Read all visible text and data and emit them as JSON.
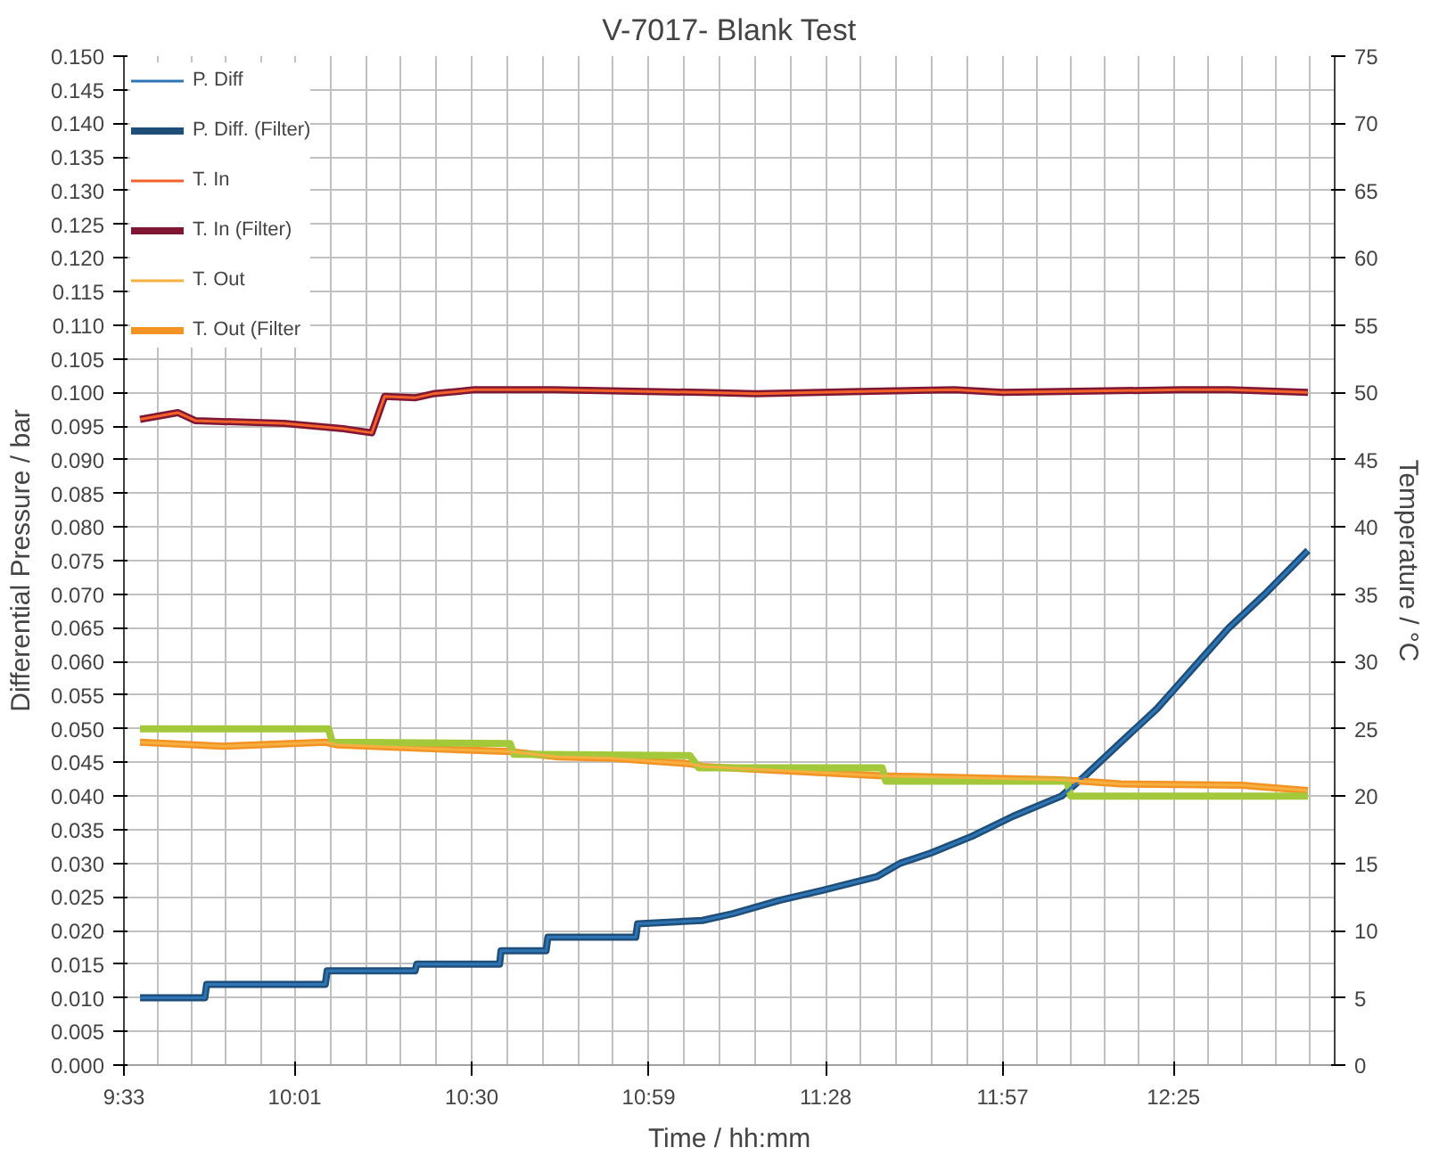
{
  "chart_data": {
    "type": "line",
    "title": "V-7017- Blank Test",
    "xlabel": "Time / hh:mm",
    "ylabel": "Differential Pressure / bar",
    "y2label": "Temperature / °C",
    "xlim": [
      9.55,
      12.857
    ],
    "xticks": [
      {
        "value": 9.55,
        "label": "9:33"
      },
      {
        "value": 10.0167,
        "label": "10:01"
      },
      {
        "value": 10.5,
        "label": "10:30"
      },
      {
        "value": 10.9833,
        "label": "10:59"
      },
      {
        "value": 11.4667,
        "label": "11:28"
      },
      {
        "value": 11.95,
        "label": "11:57"
      },
      {
        "value": 12.4167,
        "label": "12:25"
      }
    ],
    "ylim": [
      0,
      0.15
    ],
    "yticks": [
      {
        "value": 0,
        "label": "0.000"
      },
      {
        "value": 0.005,
        "label": "0.005"
      },
      {
        "value": 0.01,
        "label": "0.010"
      },
      {
        "value": 0.015,
        "label": "0.015"
      },
      {
        "value": 0.02,
        "label": "0.020"
      },
      {
        "value": 0.025,
        "label": "0.025"
      },
      {
        "value": 0.03,
        "label": "0.030"
      },
      {
        "value": 0.035,
        "label": "0.035"
      },
      {
        "value": 0.04,
        "label": "0.040"
      },
      {
        "value": 0.045,
        "label": "0.045"
      },
      {
        "value": 0.05,
        "label": "0.050"
      },
      {
        "value": 0.055,
        "label": "0.055"
      },
      {
        "value": 0.06,
        "label": "0.060"
      },
      {
        "value": 0.065,
        "label": "0.065"
      },
      {
        "value": 0.07,
        "label": "0.070"
      },
      {
        "value": 0.075,
        "label": "0.075"
      },
      {
        "value": 0.08,
        "label": "0.080"
      },
      {
        "value": 0.085,
        "label": "0.085"
      },
      {
        "value": 0.09,
        "label": "0.090"
      },
      {
        "value": 0.095,
        "label": "0.095"
      },
      {
        "value": 0.1,
        "label": "0.100"
      },
      {
        "value": 0.105,
        "label": "0.105"
      },
      {
        "value": 0.11,
        "label": "0.110"
      },
      {
        "value": 0.115,
        "label": "0.115"
      },
      {
        "value": 0.12,
        "label": "0.120"
      },
      {
        "value": 0.125,
        "label": "0.125"
      },
      {
        "value": 0.13,
        "label": "0.130"
      },
      {
        "value": 0.135,
        "label": "0.135"
      },
      {
        "value": 0.14,
        "label": "0.140"
      },
      {
        "value": 0.145,
        "label": "0.145"
      },
      {
        "value": 0.15,
        "label": "0.150"
      }
    ],
    "y2lim": [
      0,
      75
    ],
    "y2ticks": [
      0,
      5,
      10,
      15,
      20,
      25,
      30,
      35,
      40,
      45,
      50,
      55,
      60,
      65,
      70,
      75
    ],
    "grid": true,
    "legend": "top left",
    "series": [
      {
        "name": "P. Diff",
        "color": "#2e75b6",
        "x": [
          9.594,
          9.771,
          9.776,
          10.1,
          10.105,
          10.345,
          10.35,
          10.576,
          10.58,
          10.703,
          10.708,
          10.948,
          10.953,
          11.13,
          11.213,
          11.341,
          11.459,
          11.606,
          11.67,
          11.753,
          11.866,
          11.979,
          12.111,
          12.175,
          12.273,
          12.372,
          12.47,
          12.568,
          12.666,
          12.784
        ],
        "values": [
          0.01,
          0.01,
          0.012,
          0.012,
          0.014,
          0.014,
          0.015,
          0.015,
          0.017,
          0.017,
          0.019,
          0.019,
          0.021,
          0.0215,
          0.0225,
          0.0245,
          0.026,
          0.028,
          0.03,
          0.0315,
          0.034,
          0.037,
          0.04,
          0.043,
          0.048,
          0.053,
          0.059,
          0.065,
          0.07,
          0.0765
        ]
      },
      {
        "name": "P. Diff. (Filter)",
        "color": "#1f4e79",
        "x": [
          9.594,
          9.771,
          9.776,
          10.1,
          10.105,
          10.345,
          10.35,
          10.576,
          10.58,
          10.703,
          10.708,
          10.948,
          10.953,
          11.13,
          11.213,
          11.341,
          11.459,
          11.606,
          11.67,
          11.753,
          11.866,
          11.979,
          12.111,
          12.175,
          12.273,
          12.372,
          12.47,
          12.568,
          12.666,
          12.784
        ],
        "values": [
          0.01,
          0.01,
          0.012,
          0.012,
          0.014,
          0.014,
          0.015,
          0.015,
          0.017,
          0.017,
          0.019,
          0.019,
          0.021,
          0.0215,
          0.0225,
          0.0245,
          0.026,
          0.028,
          0.03,
          0.0315,
          0.034,
          0.037,
          0.04,
          0.043,
          0.048,
          0.053,
          0.059,
          0.065,
          0.07,
          0.0765
        ]
      },
      {
        "name": "T. In",
        "color": "#f4622a",
        "axis": "y2",
        "x": [
          9.594,
          9.697,
          9.746,
          9.987,
          10.149,
          10.227,
          10.262,
          10.345,
          10.394,
          10.507,
          10.723,
          11.13,
          11.277,
          11.621,
          11.817,
          11.95,
          12.44,
          12.568,
          12.784
        ],
        "values": [
          48.0,
          48.5,
          47.9,
          47.7,
          47.3,
          47.0,
          49.7,
          49.6,
          49.9,
          50.2,
          50.2,
          50.0,
          49.9,
          50.1,
          50.2,
          50.0,
          50.2,
          50.2,
          50.0
        ]
      },
      {
        "name": "T. In (Filter)",
        "color": "#7f1734",
        "axis": "y2",
        "x": [
          9.594,
          9.697,
          9.746,
          9.987,
          10.149,
          10.227,
          10.262,
          10.345,
          10.394,
          10.507,
          10.723,
          11.13,
          11.277,
          11.621,
          11.817,
          11.95,
          12.44,
          12.568,
          12.784
        ],
        "values": [
          48.0,
          48.5,
          47.9,
          47.7,
          47.3,
          47.0,
          49.7,
          49.6,
          49.9,
          50.2,
          50.2,
          50.0,
          49.9,
          50.1,
          50.2,
          50.0,
          50.2,
          50.2,
          50.0
        ]
      },
      {
        "name": "T. Out",
        "color": "#f5b041",
        "axis": "y2",
        "x": [
          9.594,
          9.82,
          10.1,
          10.134,
          10.311,
          10.605,
          10.737,
          10.885,
          11.096,
          11.13,
          11.621,
          12.111,
          12.273,
          12.602,
          12.784
        ],
        "values": [
          24.0,
          23.7,
          24.0,
          23.8,
          23.6,
          23.3,
          22.9,
          22.8,
          22.4,
          22.2,
          21.5,
          21.2,
          20.9,
          20.8,
          20.4
        ]
      },
      {
        "name": "T. Out (Filter",
        "color": "#f39323",
        "axis": "y2",
        "x": [
          9.594,
          9.82,
          10.1,
          10.134,
          10.311,
          10.605,
          10.737,
          10.885,
          11.096,
          11.13,
          11.621,
          12.111,
          12.273,
          12.602,
          12.784
        ],
        "values": [
          24.0,
          23.7,
          24.0,
          23.8,
          23.6,
          23.3,
          22.9,
          22.8,
          22.4,
          22.2,
          21.5,
          21.2,
          20.9,
          20.8,
          20.4
        ]
      },
      {
        "color": "#a3c93a",
        "axis": "y2",
        "x": [
          9.594,
          10.109,
          10.119,
          10.605,
          10.615,
          11.096,
          11.12,
          11.621,
          11.631,
          12.126,
          12.136,
          12.784
        ],
        "values": [
          25.0,
          25.0,
          24.0,
          23.9,
          23.1,
          23.0,
          22.1,
          22.1,
          21.1,
          21.1,
          20.0,
          20.0
        ]
      }
    ]
  }
}
